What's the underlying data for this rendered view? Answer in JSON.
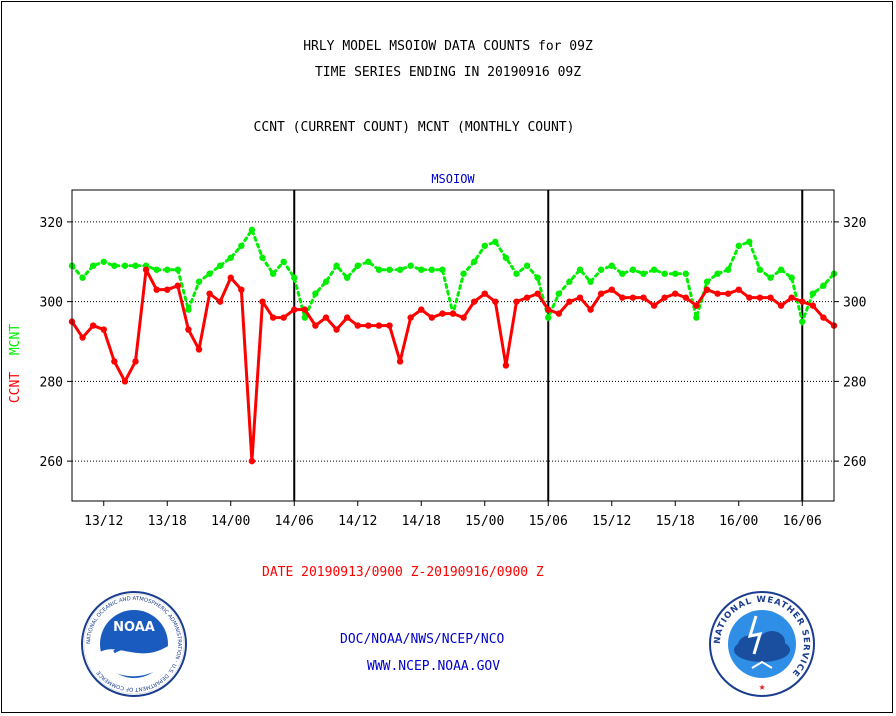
{
  "titles": {
    "line1": "HRLY MODEL MSOIOW DATA COUNTS for 09Z",
    "line2": "TIME SERIES ENDING IN 20190916 09Z",
    "line3": "CCNT (CURRENT COUNT) MCNT (MONTHLY COUNT)"
  },
  "footer": {
    "date_range": "DATE 20190913/0900 Z-20190916/0900 Z",
    "org": "DOC/NOAA/NWS/NCEP/NCO",
    "url": "WWW.NCEP.NOAA.GOV"
  },
  "logos": {
    "noaa_text": "NOAA",
    "noaa_ring": "NATIONAL OCEANIC AND ATMOSPHERIC ADMINISTRATION · U.S. DEPARTMENT OF COMMERCE",
    "nws_ring": "NATIONAL WEATHER SERVICE"
  },
  "colors": {
    "ccnt": "#ff0000",
    "mcnt": "#00ee00",
    "label_blue": "#0000cc",
    "grid": "#000000"
  },
  "chart_data": {
    "type": "line",
    "title": "MSOIOW",
    "ylabel_ccnt": "CCNT",
    "ylabel_mcnt": "MCNT",
    "ylim": [
      250,
      328
    ],
    "yticks": [
      260,
      280,
      300,
      320
    ],
    "grid": true,
    "x_start": "13/09",
    "x_end": "16/09",
    "x_step_hours": 1,
    "xtick_labels": [
      "13/12",
      "13/18",
      "14/00",
      "14/06",
      "14/12",
      "14/18",
      "15/00",
      "15/06",
      "15/12",
      "15/18",
      "16/00",
      "16/06"
    ],
    "day_boundaries": [
      "14/06",
      "15/06",
      "16/06"
    ],
    "series": [
      {
        "name": "CCNT",
        "color": "#ff0000",
        "values": [
          295,
          291,
          294,
          293,
          285,
          280,
          285,
          308,
          303,
          303,
          304,
          293,
          288,
          302,
          300,
          306,
          303,
          260,
          300,
          296,
          296,
          298,
          298,
          294,
          296,
          293,
          296,
          294,
          294,
          294,
          294,
          285,
          296,
          298,
          296,
          297,
          297,
          296,
          300,
          302,
          300,
          284,
          300,
          301,
          302,
          298,
          297,
          300,
          301,
          298,
          302,
          303,
          301,
          301,
          301,
          299,
          301,
          302,
          301,
          299,
          303,
          302,
          302,
          303,
          301,
          301,
          301,
          299,
          301,
          300,
          299,
          296,
          294
        ]
      },
      {
        "name": "MCNT",
        "color": "#00ee00",
        "values": [
          309,
          306,
          309,
          310,
          309,
          309,
          309,
          309,
          308,
          308,
          308,
          298,
          305,
          307,
          309,
          311,
          314,
          318,
          311,
          307,
          310,
          306,
          296,
          302,
          305,
          309,
          306,
          309,
          310,
          308,
          308,
          308,
          309,
          308,
          308,
          308,
          297,
          307,
          310,
          314,
          315,
          311,
          307,
          309,
          306,
          296,
          302,
          305,
          308,
          305,
          308,
          309,
          307,
          308,
          307,
          308,
          307,
          307,
          307,
          296,
          305,
          307,
          308,
          314,
          315,
          308,
          306,
          308,
          306,
          295,
          302,
          304,
          307
        ]
      }
    ]
  }
}
